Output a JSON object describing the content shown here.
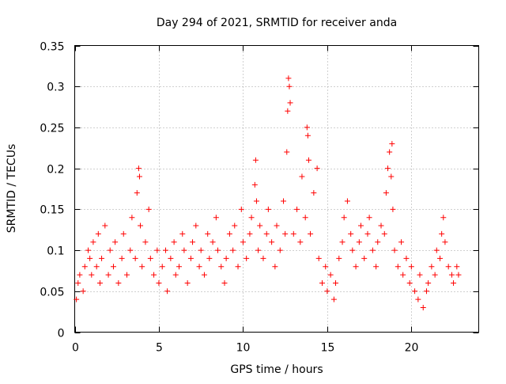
{
  "chart_data": {
    "type": "scatter",
    "title": "Day 294 of 2021, SRMTID for receiver anda",
    "xlabel": "GPS time / hours",
    "ylabel": "SRMTID / TECUs",
    "xlim": [
      0,
      24
    ],
    "ylim": [
      0,
      0.35
    ],
    "grid": true,
    "marker": "+",
    "xticks": [
      0,
      5,
      10,
      15,
      20
    ],
    "xtick_labels": [
      "0",
      "5",
      "10",
      "15",
      "20"
    ],
    "yticks": [
      0,
      0.05,
      0.1,
      0.15,
      0.2,
      0.25,
      0.3,
      0.35
    ],
    "ytick_labels": [
      "0",
      "0.05",
      "0.1",
      "0.15",
      "0.2",
      "0.25",
      "0.3",
      "0.35"
    ],
    "series": [
      {
        "name": "SRMTID",
        "color": "#ff0000",
        "x": [
          0.1,
          0.2,
          0.3,
          0.5,
          0.6,
          0.8,
          0.9,
          1.0,
          1.1,
          1.3,
          1.4,
          1.5,
          1.6,
          1.8,
          2.0,
          2.1,
          2.3,
          2.4,
          2.6,
          2.8,
          2.9,
          3.1,
          3.3,
          3.4,
          3.6,
          3.7,
          3.8,
          3.85,
          3.9,
          4.0,
          4.2,
          4.4,
          4.5,
          4.7,
          4.9,
          5.0,
          5.2,
          5.4,
          5.5,
          5.7,
          5.9,
          6.0,
          6.2,
          6.4,
          6.5,
          6.7,
          6.9,
          7.0,
          7.2,
          7.4,
          7.5,
          7.7,
          7.9,
          8.0,
          8.2,
          8.4,
          8.5,
          8.7,
          8.9,
          9.0,
          9.2,
          9.4,
          9.5,
          9.7,
          9.9,
          10.0,
          10.2,
          10.4,
          10.5,
          10.7,
          10.75,
          10.8,
          10.9,
          11.0,
          11.2,
          11.4,
          11.5,
          11.7,
          11.9,
          12.0,
          12.2,
          12.4,
          12.5,
          12.6,
          12.65,
          12.7,
          12.75,
          12.8,
          13.0,
          13.2,
          13.4,
          13.5,
          13.7,
          13.8,
          13.85,
          13.9,
          14.0,
          14.2,
          14.4,
          14.5,
          14.7,
          14.9,
          15.0,
          15.2,
          15.4,
          15.5,
          15.7,
          15.9,
          16.0,
          16.2,
          16.4,
          16.5,
          16.7,
          16.9,
          17.0,
          17.2,
          17.4,
          17.5,
          17.7,
          17.9,
          18.0,
          18.2,
          18.4,
          18.5,
          18.6,
          18.7,
          18.8,
          18.85,
          18.9,
          19.0,
          19.2,
          19.4,
          19.5,
          19.7,
          19.9,
          20.0,
          20.2,
          20.4,
          20.5,
          20.7,
          20.9,
          21.0,
          21.2,
          21.4,
          21.5,
          21.7,
          21.8,
          21.9,
          22.0,
          22.2,
          22.4,
          22.5,
          22.7,
          22.8
        ],
        "y": [
          0.04,
          0.06,
          0.07,
          0.05,
          0.08,
          0.1,
          0.09,
          0.07,
          0.11,
          0.08,
          0.12,
          0.06,
          0.09,
          0.13,
          0.07,
          0.1,
          0.08,
          0.11,
          0.06,
          0.09,
          0.12,
          0.07,
          0.1,
          0.14,
          0.09,
          0.17,
          0.2,
          0.19,
          0.13,
          0.08,
          0.11,
          0.15,
          0.09,
          0.07,
          0.1,
          0.06,
          0.08,
          0.1,
          0.05,
          0.09,
          0.11,
          0.07,
          0.08,
          0.12,
          0.1,
          0.06,
          0.09,
          0.11,
          0.13,
          0.08,
          0.1,
          0.07,
          0.12,
          0.09,
          0.11,
          0.14,
          0.1,
          0.08,
          0.06,
          0.09,
          0.12,
          0.1,
          0.13,
          0.08,
          0.15,
          0.11,
          0.09,
          0.12,
          0.14,
          0.18,
          0.21,
          0.16,
          0.1,
          0.13,
          0.09,
          0.12,
          0.15,
          0.11,
          0.08,
          0.13,
          0.1,
          0.16,
          0.12,
          0.22,
          0.27,
          0.31,
          0.3,
          0.28,
          0.12,
          0.15,
          0.11,
          0.19,
          0.14,
          0.25,
          0.24,
          0.21,
          0.12,
          0.17,
          0.2,
          0.09,
          0.06,
          0.08,
          0.05,
          0.07,
          0.04,
          0.06,
          0.09,
          0.11,
          0.14,
          0.16,
          0.12,
          0.1,
          0.08,
          0.11,
          0.13,
          0.09,
          0.12,
          0.14,
          0.1,
          0.08,
          0.11,
          0.13,
          0.12,
          0.17,
          0.2,
          0.22,
          0.19,
          0.23,
          0.15,
          0.1,
          0.08,
          0.11,
          0.07,
          0.09,
          0.06,
          0.08,
          0.05,
          0.04,
          0.07,
          0.03,
          0.05,
          0.06,
          0.08,
          0.07,
          0.1,
          0.09,
          0.12,
          0.14,
          0.11,
          0.08,
          0.07,
          0.06,
          0.08,
          0.07
        ]
      }
    ]
  }
}
